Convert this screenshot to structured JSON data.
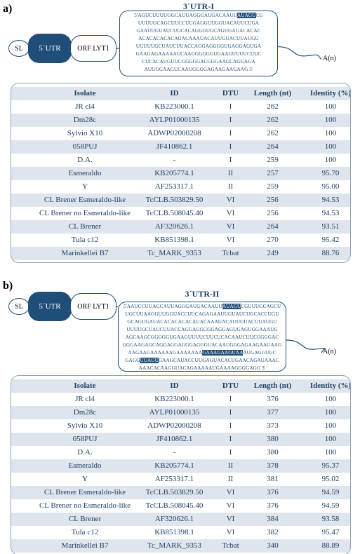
{
  "panels": [
    {
      "label": "a)",
      "title": "3´UTR-I",
      "diagram": {
        "sl": "SL",
        "utr5": "5´UTR",
        "orf": "ORF LYT1",
        "polya": "A(n)"
      },
      "sequence": [
        [
          "5'AGUCUUUUGGCAUUAGGGAUGACAAUU",
          "AUAGU",
          "CG"
        ],
        [
          "UUUUGCAGCUUCCUUGAGGUUGGUACAUUCUGA"
        ],
        [
          "GAAUUGUAUCUGCACAGGGUGCAGUGAUACACAC"
        ],
        [
          "ACACACACACAUACAAAUACAUUGUACUUAUGU"
        ],
        [
          "UGUUUGCUAUCUUACCAGGAGGGGUGAGGAGUGA"
        ],
        [
          "GAAGAGAAAAAUCAAGGGGGGUGAAGUUUUCUUC"
        ],
        [
          "CUCACAUGUUCGGGGGACGGGAAGCAGGAGA"
        ],
        [
          "AUGGGAAGUCAAUGGGGAGAAGAAGAAG 3'"
        ]
      ],
      "table": {
        "columns": [
          "Isolate",
          "ID",
          "DTU",
          "Length (nt)",
          "Identity (%)"
        ],
        "rows": [
          [
            "JR cl4",
            "KB223000.1",
            "I",
            "262",
            "100"
          ],
          [
            "Dm28c",
            "AYLP01000135",
            "I",
            "262",
            "100"
          ],
          [
            "Sylvio X10",
            "ADWP02000208",
            "I",
            "262",
            "100"
          ],
          [
            "058PUJ",
            "JF410862.1",
            "I",
            "264",
            "100"
          ],
          [
            "D.A.",
            "-",
            "I",
            "259",
            "100"
          ],
          [
            "Esmeraldo",
            "KB205774.1",
            "II",
            "257",
            "95.70"
          ],
          [
            "Y",
            "AF253317.1",
            "II",
            "259",
            "95.00"
          ],
          [
            "CL Brener Esmeraldo-like",
            "TcCLB.503829.50",
            "VI",
            "256",
            "94.53"
          ],
          [
            "CL Brener no Esmeraldo-like",
            "TcCLB.508045.40",
            "VI",
            "256",
            "94.53"
          ],
          [
            "CL Brener",
            "AF320626.1",
            "VI",
            "264",
            "93.51"
          ],
          [
            "Tula c12",
            "KB851398.1",
            "VI",
            "270",
            "95.42"
          ],
          [
            "Marinkellei B7",
            "Tc_MARK_9353",
            "Tcbat",
            "249",
            "88.76"
          ]
        ]
      }
    },
    {
      "label": "b)",
      "title": "3´UTR-II",
      "diagram": {
        "sl": "SL",
        "utr5": "5´UTR",
        "orf": "ORF LYT1",
        "polya": "A(n)"
      },
      "sequence": [
        [
          "5'AAUCCUUAGCAUUAGGGAUGACAAUU",
          "AUAGU",
          "CGUUUGCAGCU"
        ],
        [
          "UGCUUAAGGUUGGUACCUUCAGAGAAUUGUAUCUGCACCUGU"
        ],
        [
          "GCAGUGAUACACACACACAUACAAAUACAUUGUACUUAUGU"
        ],
        [
          "UUUUGCUAUCUUACCAGGAGGGGGAGGAGUGAGUGGAAAUG"
        ],
        [
          "AGCAAGCGGGGGUGAAGUUUUCUUCUCACAAUCUUCGGGGAC"
        ],
        [
          "GGGAAGAGCAGGAGGAGGGAGGGUACAAUGGGAGAAGAAGAAG"
        ],
        [
          "AAGAAGAAAAAAGAAAAAAA",
          "GAAAGAAGUAA",
          "AUGAGGUGC"
        ],
        [
          "GAGG",
          "UUAGU",
          "GAAGCAUACCUUGAGUACACUGAACAGAUAAAC"
        ],
        [
          "AAACACAAGGUACAGAAAAAUGAAAAGGGGAGG 3'"
        ]
      ],
      "table": {
        "columns": [
          "Isolate",
          "ID",
          "DTU",
          "Length (nt)",
          "Identity (%)"
        ],
        "rows": [
          [
            "JR cl4",
            "KB223000.1",
            "I",
            "376",
            "100"
          ],
          [
            "Dm28c",
            "AYLP01000135",
            "I",
            "377",
            "100"
          ],
          [
            "Sylvio X10",
            "ADWP02000208",
            "I",
            "373",
            "100"
          ],
          [
            "058PUJ",
            "JF410862.1",
            "I",
            "380",
            "100"
          ],
          [
            "D.A.",
            "-",
            "I",
            "380",
            "100"
          ],
          [
            "Esmeraldo",
            "KB205774.1",
            "II",
            "378",
            "95.37"
          ],
          [
            "Y",
            "AF253317.1",
            "II",
            "381",
            "95.02"
          ],
          [
            "CL Brener Esmeraldo-like",
            "TcCLB.503829.50",
            "VI",
            "376",
            "94.59"
          ],
          [
            "CL Brener no Esmeraldo-like",
            "TcCLB.508045.40",
            "VI",
            "376",
            "94.59"
          ],
          [
            "CL Brener",
            "AF320626.1",
            "VI",
            "384",
            "93.58"
          ],
          [
            "Tula c12",
            "KB851398.1",
            "VI",
            "382",
            "95.47"
          ],
          [
            "Marinkellei B7",
            "Tc_MARK_9353",
            "Tcbat",
            "340",
            "88.89"
          ]
        ]
      }
    }
  ]
}
